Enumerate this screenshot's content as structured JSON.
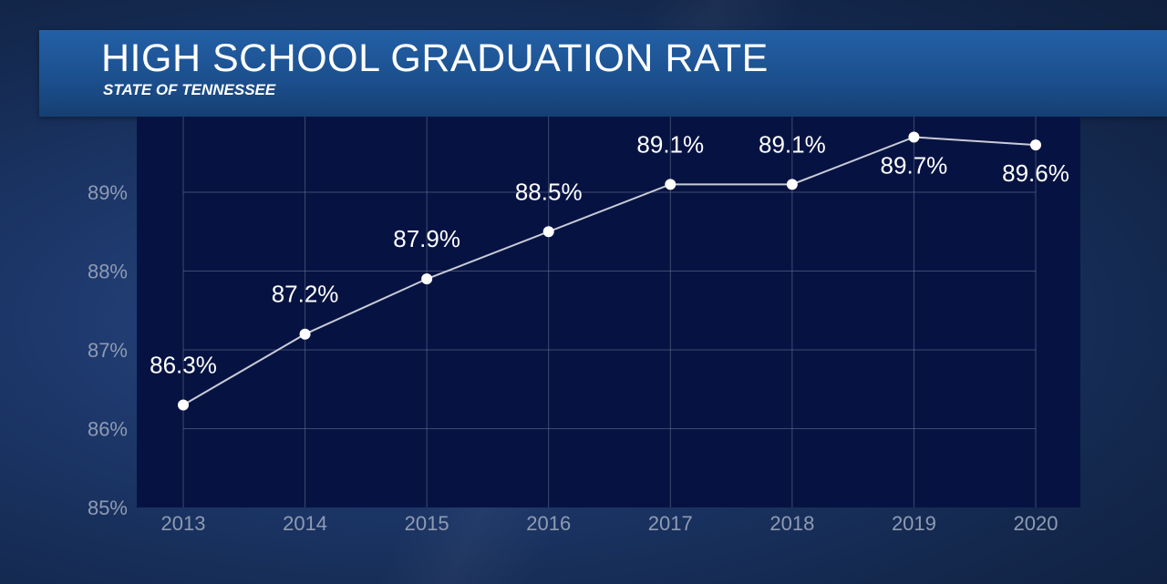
{
  "header": {
    "title": "HIGH SCHOOL GRADUATION RATE",
    "subtitle": "STATE OF TENNESSEE"
  },
  "colors": {
    "plot_background": "#061342",
    "line": "#c9ccd6",
    "marker": "#ffffff",
    "banner": "#2360a6",
    "tick_label": "#8f9bb3"
  },
  "chart_data": {
    "type": "line",
    "title": "HIGH SCHOOL GRADUATION RATE",
    "subtitle": "STATE OF TENNESSEE",
    "xlabel": "",
    "ylabel": "",
    "categories": [
      "2013",
      "2014",
      "2015",
      "2016",
      "2017",
      "2018",
      "2019",
      "2020"
    ],
    "series": [
      {
        "values": [
          86.3,
          87.2,
          87.9,
          88.5,
          89.1,
          89.1,
          89.7,
          89.6
        ],
        "data_labels": [
          "86.3%",
          "87.2%",
          "87.9%",
          "88.5%",
          "89.1%",
          "89.1%",
          "89.7%",
          "89.6%"
        ]
      }
    ],
    "ylim": [
      85,
      89.9
    ],
    "yticks": [
      85,
      86,
      87,
      88,
      89
    ],
    "ytick_labels": [
      "85%",
      "86%",
      "87%",
      "88%",
      "89%"
    ],
    "grid": true,
    "legend": "none"
  }
}
